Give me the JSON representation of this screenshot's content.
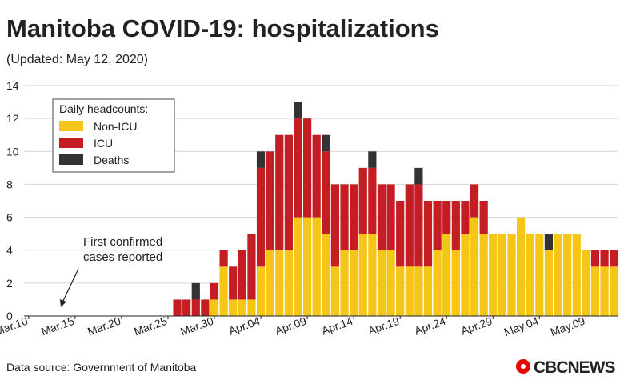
{
  "chart_data": {
    "type": "stacked_bar",
    "title": "Manitoba COVID-19: hospitalizations",
    "subtitle": "(Updated: May 12, 2020)",
    "legend_title": "Daily headcounts:",
    "annotation": "First confirmed cases reported",
    "source": "Data source: Government of Manitoba",
    "brand": "CBCNEWS",
    "categories": [
      "Mar.10",
      null,
      null,
      null,
      null,
      "Mar.15",
      null,
      null,
      null,
      null,
      "Mar.20",
      null,
      null,
      null,
      null,
      "Mar.25",
      null,
      null,
      null,
      null,
      "Mar.30",
      null,
      null,
      null,
      null,
      "Apr.04",
      null,
      null,
      null,
      null,
      "Apr.09",
      null,
      null,
      null,
      null,
      "Apr.14",
      null,
      null,
      null,
      null,
      "Apr.19",
      null,
      null,
      null,
      null,
      "Apr.24",
      null,
      null,
      null,
      null,
      "Apr.29",
      null,
      null,
      null,
      null,
      "May.04",
      null,
      null,
      null,
      null,
      "May.09",
      null,
      null,
      null
    ],
    "series": [
      {
        "name": "Non-ICU",
        "color": "#f5c518",
        "values": [
          0,
          0,
          0,
          0,
          0,
          0,
          0,
          0,
          0,
          0,
          0,
          0,
          0,
          0,
          0,
          0,
          0,
          0,
          0,
          0,
          1,
          3,
          1,
          1,
          1,
          3,
          4,
          4,
          4,
          6,
          6,
          6,
          5,
          3,
          4,
          4,
          5,
          5,
          4,
          4,
          3,
          3,
          3,
          3,
          4,
          5,
          4,
          5,
          6,
          5,
          5,
          5,
          5,
          6,
          5,
          5,
          4,
          5,
          5,
          5,
          4,
          3,
          3,
          3
        ]
      },
      {
        "name": "ICU",
        "color": "#c41e24",
        "values": [
          0,
          0,
          0,
          0,
          0,
          0,
          0,
          0,
          0,
          0,
          0,
          0,
          0,
          0,
          0,
          0,
          1,
          1,
          1,
          1,
          1,
          1,
          2,
          3,
          4,
          6,
          6,
          7,
          7,
          6,
          6,
          5,
          5,
          5,
          4,
          4,
          4,
          4,
          4,
          4,
          4,
          5,
          5,
          4,
          3,
          2,
          3,
          2,
          2,
          2,
          0,
          0,
          0,
          0,
          0,
          0,
          0,
          0,
          0,
          0,
          0,
          1,
          1,
          1
        ]
      },
      {
        "name": "Deaths",
        "color": "#333333",
        "values": [
          0,
          0,
          0,
          0,
          0,
          0,
          0,
          0,
          0,
          0,
          0,
          0,
          0,
          0,
          0,
          0,
          0,
          0,
          1,
          0,
          0,
          0,
          0,
          0,
          0,
          1,
          0,
          0,
          0,
          1,
          0,
          0,
          1,
          0,
          0,
          0,
          0,
          1,
          0,
          0,
          0,
          0,
          1,
          0,
          0,
          0,
          0,
          0,
          0,
          0,
          0,
          0,
          0,
          0,
          0,
          0,
          1,
          0,
          0,
          0,
          0,
          0,
          0,
          0
        ]
      }
    ],
    "ylim": [
      0,
      14
    ],
    "yticks": [
      0,
      2,
      4,
      6,
      8,
      10,
      12,
      14
    ],
    "grid": true
  }
}
